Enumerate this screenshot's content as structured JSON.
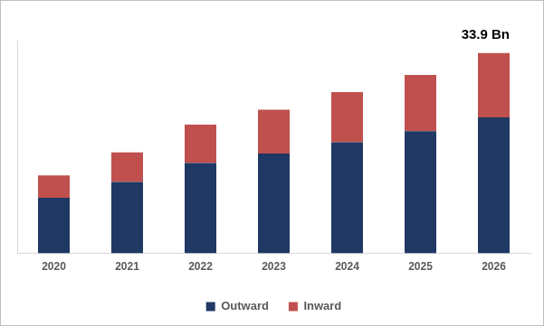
{
  "chart_data": {
    "type": "bar",
    "stacked": true,
    "categories": [
      "2020",
      "2021",
      "2022",
      "2023",
      "2024",
      "2025",
      "2026"
    ],
    "series": [
      {
        "name": "Outward",
        "color": "#1f3864",
        "values": [
          9.4,
          12.1,
          15.3,
          16.9,
          18.8,
          20.7,
          23.0
        ]
      },
      {
        "name": "Inward",
        "color": "#c0504d",
        "values": [
          3.8,
          5.0,
          6.5,
          7.4,
          8.5,
          9.5,
          10.9
        ]
      }
    ],
    "ylim": [
      0,
      36
    ],
    "yticks": [],
    "grid": false,
    "legend": "bottom",
    "tick_labels": "x",
    "annotations": [
      {
        "text": "33.9 Bn",
        "category": "2026"
      }
    ]
  }
}
